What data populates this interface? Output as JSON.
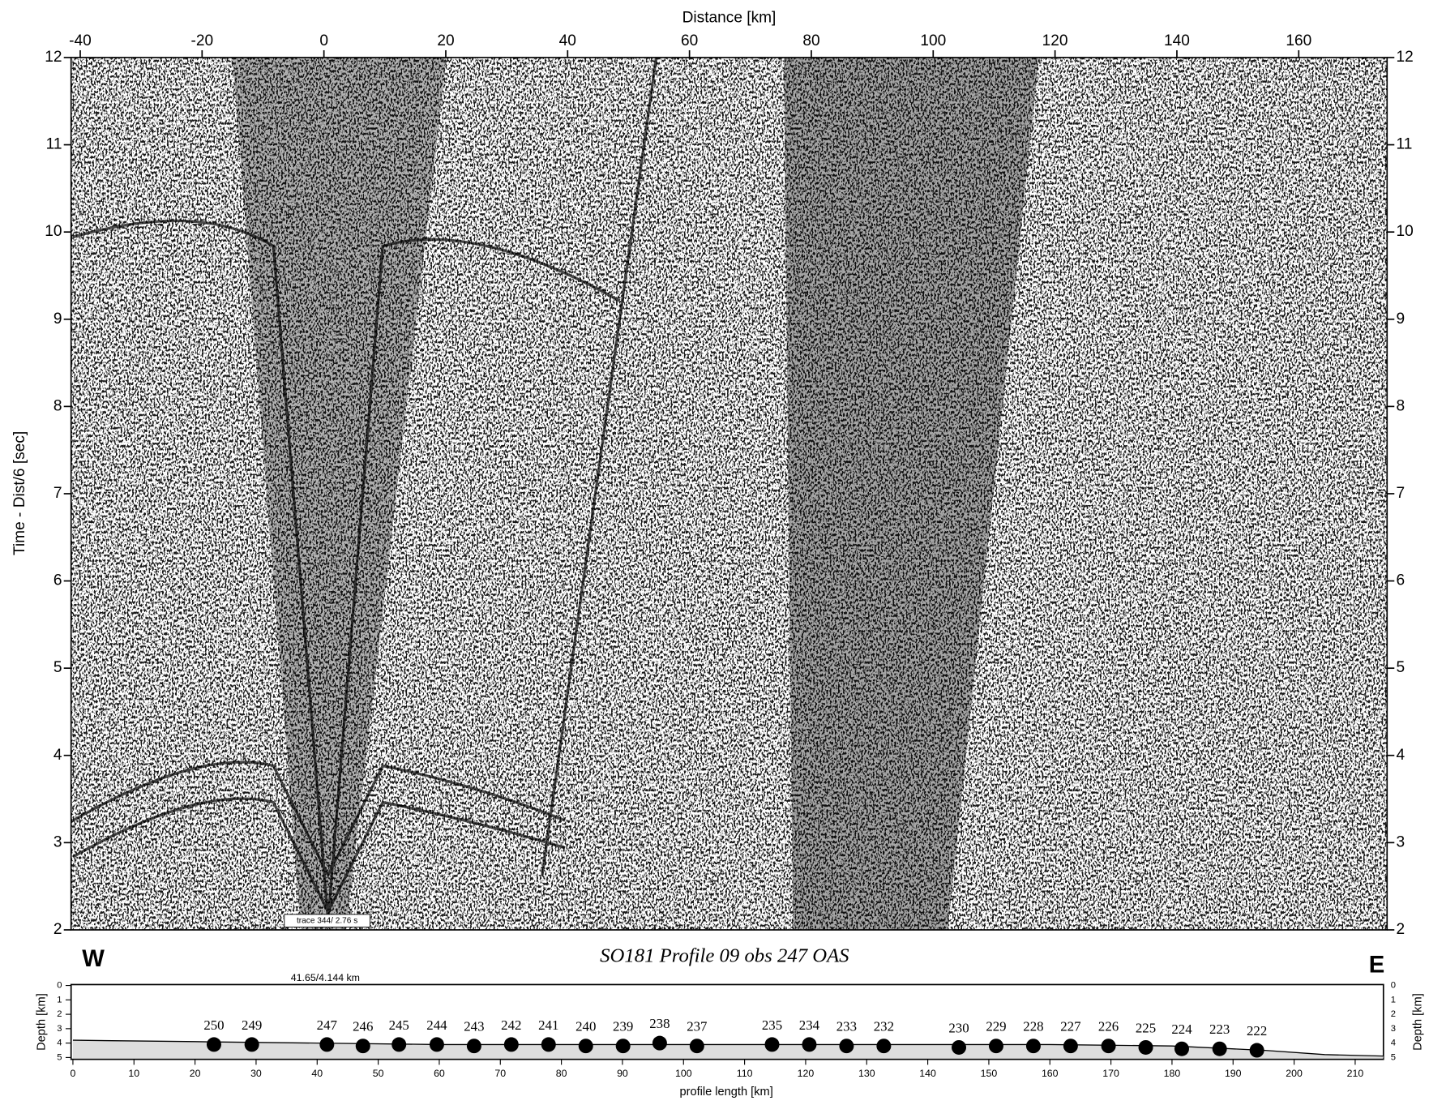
{
  "chart_data": [
    {
      "type": "seismic-section",
      "xlabel": "Distance [km]",
      "ylabel": "Time - Dist/6 [sec]",
      "xlim": [
        -41.5,
        174.5
      ],
      "xticks": [
        -40,
        -20,
        0,
        20,
        40,
        60,
        80,
        100,
        120,
        140,
        160
      ],
      "ylim": [
        2,
        12
      ],
      "yticks": [
        2,
        3,
        4,
        5,
        6,
        7,
        8,
        9,
        10,
        11,
        12
      ],
      "annotations": [
        "trace 344/ 2.76 s",
        "W",
        "E"
      ]
    },
    {
      "type": "profile",
      "title": "SO181 Profile 09 obs 247 OAS",
      "xlabel": "profile length [km]",
      "ylabel": "Depth [km]",
      "xlim": [
        0,
        214.6
      ],
      "xticks": [
        0,
        10,
        20,
        30,
        40,
        50,
        60,
        70,
        80,
        90,
        100,
        110,
        120,
        130,
        140,
        150,
        160,
        170,
        180,
        190,
        200,
        210
      ],
      "ylim": [
        0,
        5
      ],
      "yticks": [
        0,
        1,
        2,
        3,
        4,
        5
      ],
      "y_inverted": true,
      "annotations": [
        "41.65/4.144 km"
      ],
      "stations": {
        "labels": [
          "250",
          "249",
          "247",
          "246",
          "245",
          "244",
          "243",
          "242",
          "241",
          "240",
          "239",
          "238",
          "237",
          "235",
          "234",
          "233",
          "232",
          "230",
          "229",
          "228",
          "227",
          "226",
          "225",
          "224",
          "223",
          "222"
        ],
        "x": [
          23.1,
          29.3,
          41.6,
          47.5,
          53.4,
          59.6,
          65.7,
          71.8,
          77.9,
          84.0,
          90.1,
          96.1,
          102.2,
          114.5,
          120.6,
          126.7,
          132.8,
          145.1,
          151.2,
          157.3,
          163.4,
          169.6,
          175.7,
          181.6,
          187.8,
          193.9
        ],
        "values": [
          4.1,
          4.1,
          4.1,
          4.2,
          4.1,
          4.1,
          4.2,
          4.1,
          4.1,
          4.2,
          4.2,
          4.0,
          4.2,
          4.1,
          4.1,
          4.2,
          4.2,
          4.3,
          4.2,
          4.2,
          4.2,
          4.2,
          4.3,
          4.4,
          4.4,
          4.5
        ]
      },
      "seafloor": {
        "x": [
          0,
          20,
          40,
          60,
          80,
          100,
          120,
          140,
          160,
          180,
          195,
          205,
          214.6
        ],
        "values": [
          3.8,
          3.9,
          4.0,
          4.1,
          4.1,
          4.1,
          4.1,
          4.1,
          4.1,
          4.2,
          4.5,
          4.8,
          4.9
        ]
      }
    }
  ]
}
